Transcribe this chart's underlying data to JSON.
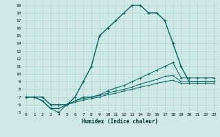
{
  "xlabel": "Humidex (Indice chaleur)",
  "background_color": "#cde8e5",
  "grid_color": "#b0d4d0",
  "line_color": "#006060",
  "xlim": [
    -0.5,
    23.5
  ],
  "ylim": [
    5,
    19.5
  ],
  "xticks": [
    0,
    1,
    2,
    3,
    4,
    5,
    6,
    7,
    8,
    9,
    10,
    11,
    12,
    13,
    14,
    15,
    16,
    17,
    18,
    19,
    20,
    21,
    22,
    23
  ],
  "yticks": [
    5,
    6,
    7,
    8,
    9,
    10,
    11,
    12,
    13,
    14,
    15,
    16,
    17,
    18,
    19
  ],
  "series": [
    {
      "x": [
        0,
        1,
        2,
        3,
        4,
        5,
        6,
        7,
        8,
        9,
        10,
        11,
        12,
        13,
        14,
        15,
        16,
        17,
        18,
        19,
        20,
        21,
        22,
        23
      ],
      "y": [
        7,
        7,
        7,
        6,
        6,
        6,
        7,
        9,
        11,
        15,
        16,
        17,
        18,
        19,
        19,
        18,
        18,
        17,
        14,
        11,
        9,
        9,
        9,
        9
      ],
      "lw": 1.0,
      "ms": 3.5,
      "mew": 0.8
    },
    {
      "x": [
        0,
        1,
        2,
        3,
        4,
        5,
        6,
        7,
        8,
        9,
        10,
        11,
        12,
        13,
        14,
        15,
        16,
        17,
        18,
        19,
        20,
        21,
        22,
        23
      ],
      "y": [
        7,
        7,
        6.5,
        5.5,
        5,
        6,
        6.5,
        7,
        7,
        7.3,
        7.8,
        8.2,
        8.5,
        9,
        9.5,
        10,
        10.5,
        11,
        11.5,
        9.5,
        9.5,
        9.5,
        9.5,
        9.5
      ],
      "lw": 0.7,
      "ms": 2.5,
      "mew": 0.6
    },
    {
      "x": [
        0,
        1,
        2,
        3,
        4,
        5,
        6,
        7,
        8,
        9,
        10,
        11,
        12,
        13,
        14,
        15,
        16,
        17,
        18,
        19,
        20,
        21,
        22,
        23
      ],
      "y": [
        7,
        7,
        6.5,
        5.5,
        5.5,
        6,
        6.5,
        6.8,
        7,
        7.2,
        7.5,
        7.8,
        8,
        8.3,
        8.7,
        9,
        9.3,
        9.7,
        9.8,
        9,
        9,
        9,
        9,
        9
      ],
      "lw": 0.7,
      "ms": 2.0,
      "mew": 0.5
    },
    {
      "x": [
        0,
        1,
        2,
        3,
        4,
        5,
        6,
        7,
        8,
        9,
        10,
        11,
        12,
        13,
        14,
        15,
        16,
        17,
        18,
        19,
        20,
        21,
        22,
        23
      ],
      "y": [
        7,
        7,
        6.5,
        5.5,
        5.5,
        6,
        6.3,
        6.6,
        6.8,
        7,
        7.3,
        7.5,
        7.8,
        8,
        8.3,
        8.5,
        8.8,
        9,
        9.2,
        8.8,
        8.8,
        8.8,
        8.8,
        8.8
      ],
      "lw": 0.7,
      "ms": 2.0,
      "mew": 0.5
    }
  ]
}
